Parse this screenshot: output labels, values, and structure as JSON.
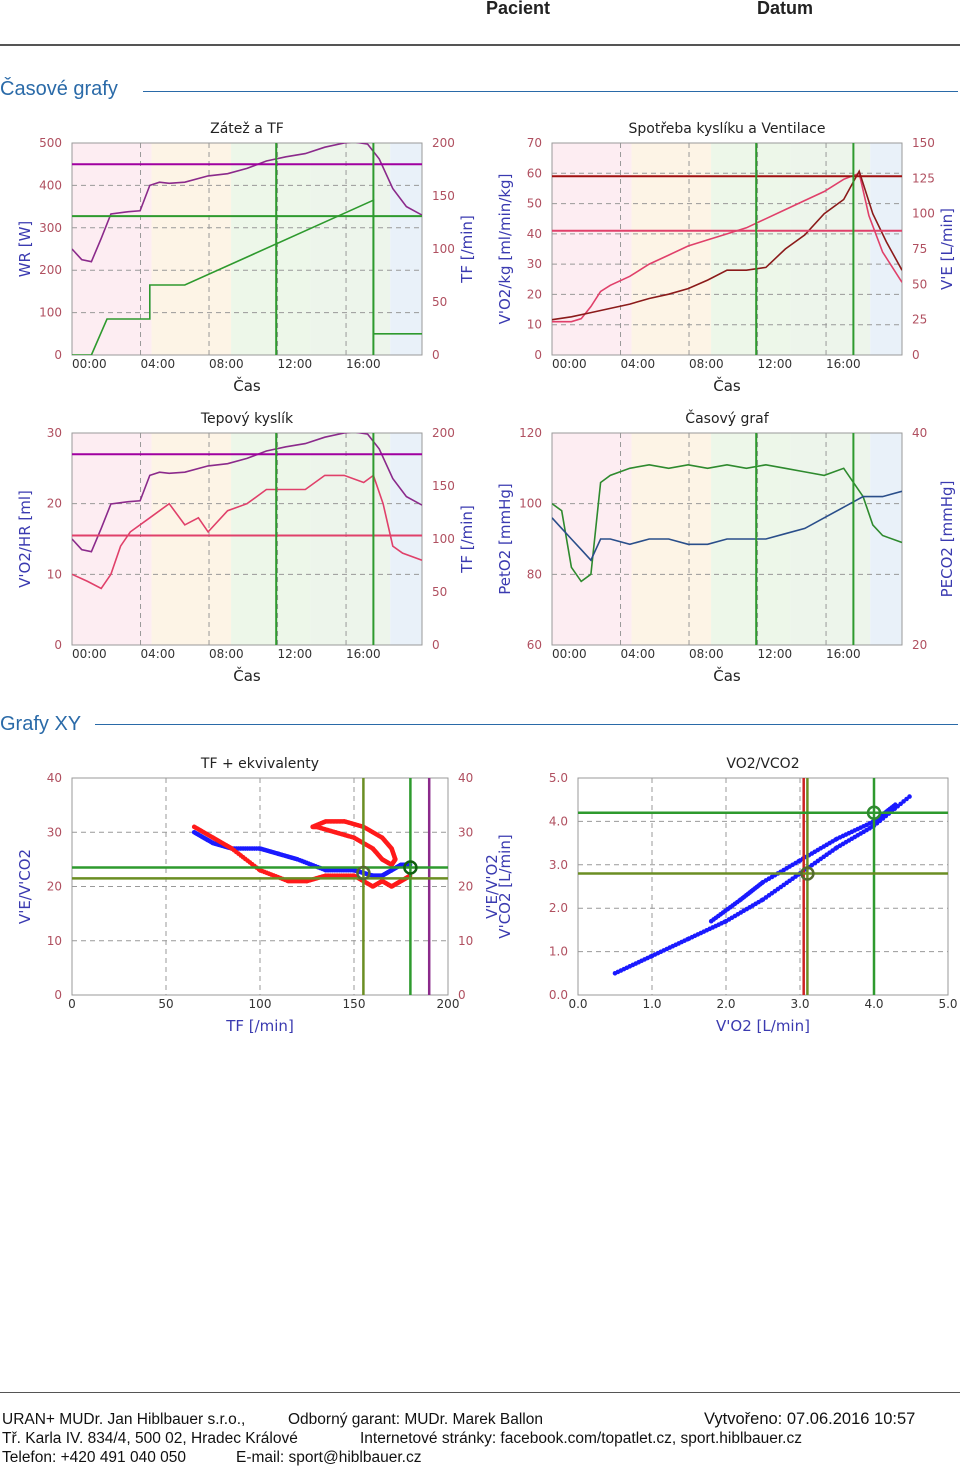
{
  "header": {
    "patient": "Pacient",
    "date": "Datum"
  },
  "sections": {
    "time_charts": "Časové grafy",
    "xy_charts": "Grafy XY"
  },
  "footer": {
    "company": "URAN+ MUDr. Jan Hiblbauer s.r.o.,",
    "guarantor": "Odborný garant: MUDr. Marek Ballon",
    "created": "Vytvořeno: 07.06.2016 10:57",
    "address": "Tř. Karla IV. 834/4, 500 02, Hradec Králové",
    "web": "Internetové stránky: facebook.com/topatlet.cz, sport.hiblbauer.cz",
    "phone": "Telefon: +420 491 040 050",
    "email": "E-mail: sport@hiblbauer.cz"
  },
  "chart_data": [
    {
      "type": "line",
      "id": "c1",
      "title": "Zátež a TF",
      "xlabel": "Čas",
      "ylabel_left": "WR [W]",
      "ylabel_right": "TF [/min]",
      "xticks": [
        "00:00",
        "04:00",
        "08:00",
        "12:00",
        "16:00"
      ],
      "xlim": [
        0,
        18
      ],
      "ylim_left": [
        0,
        500
      ],
      "ylim_right": [
        0,
        200
      ],
      "yticks_left": [
        "0",
        "100",
        "200",
        "300",
        "400",
        "500"
      ],
      "yticks_right": [
        "0",
        "50",
        "100",
        "150",
        "200"
      ],
      "series": [
        {
          "axis": "left",
          "color": "#2e9a2e",
          "x": [
            0,
            1,
            1.8,
            1.8,
            4,
            4,
            5,
            5.8,
            15.5,
            15.5,
            18
          ],
          "y": [
            0,
            0,
            85,
            85,
            85,
            165,
            165,
            165,
            365,
            50,
            50
          ]
        },
        {
          "axis": "right",
          "color": "#8b2a8b",
          "x": [
            0,
            0.5,
            1,
            1.5,
            2,
            2.8,
            3.5,
            4,
            4.5,
            5,
            5.8,
            7,
            8,
            9,
            10,
            11,
            12,
            13,
            14,
            14.5,
            15.2,
            15.8,
            16.5,
            17.2,
            18
          ],
          "y": [
            100,
            90,
            88,
            110,
            133,
            135,
            136,
            160,
            163,
            162,
            163,
            169,
            171,
            176,
            183,
            187,
            190,
            196,
            200,
            201,
            199,
            185,
            157,
            140,
            132
          ]
        },
        {
          "axis": "right",
          "color": "#a000a0",
          "x": [
            0,
            18
          ],
          "y": [
            180,
            180
          ]
        },
        {
          "axis": "right",
          "color": "#2e9a2e",
          "x": [
            0,
            18
          ],
          "y": [
            131,
            131
          ]
        },
        {
          "axis": "right",
          "color": "#2e9a2e",
          "x": [
            10.5,
            10.5
          ],
          "y": [
            0,
            200
          ]
        },
        {
          "axis": "right",
          "color": "#2e9a2e",
          "x": [
            15.5,
            15.5
          ],
          "y": [
            0,
            200
          ]
        }
      ]
    },
    {
      "type": "line",
      "id": "c2",
      "title": "Spotřeba kyslíku a Ventilace",
      "xlabel": "Čas",
      "ylabel_left": "V'O2/kg [ml/min/kg]",
      "ylabel_right": "V'E [L/min]",
      "xticks": [
        "00:00",
        "04:00",
        "08:00",
        "12:00",
        "16:00"
      ],
      "xlim": [
        0,
        18
      ],
      "ylim_left": [
        0,
        70
      ],
      "ylim_right": [
        0,
        150
      ],
      "yticks_left": [
        "0",
        "10",
        "20",
        "30",
        "40",
        "50",
        "60",
        "70"
      ],
      "yticks_right": [
        "0",
        "25",
        "50",
        "75",
        "100",
        "125",
        "150"
      ],
      "series": [
        {
          "axis": "left",
          "color": "#e0406a",
          "x": [
            0,
            1,
            1.5,
            2,
            2.5,
            3,
            4,
            5,
            6,
            7,
            8,
            9,
            10,
            11,
            12,
            13,
            14,
            15,
            15.8,
            16.3,
            17,
            18
          ],
          "y": [
            11,
            11,
            12,
            16,
            21,
            23,
            26,
            30,
            33,
            36,
            38,
            40,
            42,
            45,
            48,
            51,
            54,
            58,
            60,
            46,
            34,
            24
          ]
        },
        {
          "axis": "right",
          "color": "#8b1a1a",
          "x": [
            0,
            1,
            2,
            3,
            4,
            5,
            6,
            7,
            8,
            9,
            10,
            11,
            12,
            13,
            14,
            15,
            15.8,
            16.5,
            17.2,
            18
          ],
          "y": [
            25,
            27,
            30,
            33,
            36,
            40,
            43,
            47,
            53,
            60,
            60,
            62,
            75,
            85,
            100,
            110,
            130,
            100,
            80,
            60
          ]
        },
        {
          "axis": "left",
          "color": "#a01010",
          "x": [
            0,
            18
          ],
          "y": [
            59,
            59
          ]
        },
        {
          "axis": "left",
          "color": "#e0406a",
          "x": [
            0,
            18
          ],
          "y": [
            41,
            41
          ]
        },
        {
          "axis": "left",
          "color": "#2e9a2e",
          "x": [
            10.5,
            10.5
          ],
          "y": [
            0,
            70
          ]
        },
        {
          "axis": "left",
          "color": "#2e9a2e",
          "x": [
            15.5,
            15.5
          ],
          "y": [
            0,
            70
          ]
        }
      ]
    },
    {
      "type": "line",
      "id": "c3",
      "title": "Tepový kyslík",
      "xlabel": "Čas",
      "ylabel_left": "V'O2/HR [ml]",
      "ylabel_right": "TF [/min]",
      "xticks": [
        "00:00",
        "04:00",
        "08:00",
        "12:00",
        "16:00"
      ],
      "xlim": [
        0,
        18
      ],
      "ylim_left": [
        0,
        30
      ],
      "ylim_right": [
        0,
        200
      ],
      "yticks_left": [
        "0",
        "10",
        "20",
        "30"
      ],
      "yticks_right": [
        "0",
        "50",
        "100",
        "150",
        "200"
      ],
      "series": [
        {
          "axis": "left",
          "color": "#e0406a",
          "x": [
            0,
            0.8,
            1.5,
            2,
            2.5,
            3,
            4,
            5,
            5.8,
            6.5,
            7,
            8,
            9,
            10,
            11,
            12,
            13,
            14,
            15,
            15.5,
            16,
            16.5,
            17,
            18
          ],
          "y": [
            10,
            9,
            8,
            10,
            14,
            16,
            18,
            20,
            17,
            18,
            16,
            19,
            20,
            22,
            22,
            22,
            24,
            24,
            23,
            24,
            20,
            14,
            13,
            12
          ]
        },
        {
          "axis": "right",
          "color": "#8b2a8b",
          "x": [
            0,
            0.5,
            1,
            1.5,
            2,
            2.8,
            3.5,
            4,
            4.5,
            5,
            5.8,
            7,
            8,
            9,
            10,
            11,
            12,
            13,
            14,
            14.5,
            15.2,
            15.8,
            16.5,
            17.2,
            18
          ],
          "y": [
            100,
            90,
            88,
            110,
            133,
            135,
            136,
            160,
            163,
            162,
            163,
            169,
            171,
            176,
            183,
            187,
            190,
            196,
            200,
            201,
            199,
            185,
            157,
            140,
            132
          ]
        },
        {
          "axis": "right",
          "color": "#a000a0",
          "x": [
            0,
            18
          ],
          "y": [
            180,
            180
          ]
        },
        {
          "axis": "left",
          "color": "#e0406a",
          "x": [
            0,
            18
          ],
          "y": [
            15.5,
            15.5
          ]
        },
        {
          "axis": "left",
          "color": "#2e9a2e",
          "x": [
            10.5,
            10.5
          ],
          "y": [
            0,
            30
          ]
        },
        {
          "axis": "left",
          "color": "#2e9a2e",
          "x": [
            15.5,
            15.5
          ],
          "y": [
            0,
            30
          ]
        }
      ]
    },
    {
      "type": "line",
      "id": "c4",
      "title": "Časový graf",
      "xlabel": "Čas",
      "ylabel_left": "PetO2 [mmHg]",
      "ylabel_right": "PECO2 [mmHg]",
      "xticks": [
        "00:00",
        "04:00",
        "08:00",
        "12:00",
        "16:00"
      ],
      "xlim": [
        0,
        18
      ],
      "ylim_left": [
        60,
        120
      ],
      "ylim_right": [
        20,
        40
      ],
      "yticks_left": [
        "60",
        "80",
        "100",
        "120"
      ],
      "yticks_right": [
        "20",
        "40"
      ],
      "series": [
        {
          "axis": "left",
          "color": "#2e8a2e",
          "x": [
            0,
            0.5,
            1,
            1.5,
            2,
            2.5,
            3,
            4,
            5,
            6,
            7,
            8,
            9,
            10,
            11,
            12,
            13,
            14,
            15,
            16,
            16.5,
            17,
            18
          ],
          "y": [
            100,
            98,
            82,
            78,
            80,
            106,
            108,
            110,
            111,
            110,
            111,
            110,
            111,
            110,
            111,
            110,
            109,
            108,
            110,
            102,
            94,
            91,
            89
          ]
        },
        {
          "axis": "right",
          "color": "#2a4e8a",
          "x": [
            0,
            0.5,
            1,
            1.5,
            2,
            2.5,
            3,
            4,
            5,
            6,
            7,
            8,
            9,
            10,
            11,
            12,
            13,
            14,
            15,
            16,
            17,
            18
          ],
          "y": [
            32,
            31,
            30,
            29,
            28,
            30,
            30,
            29.5,
            30,
            30,
            29.5,
            29.5,
            30,
            30,
            30,
            30.5,
            31,
            32,
            33,
            34,
            34,
            34.5
          ]
        },
        {
          "axis": "left",
          "color": "#2e9a2e",
          "x": [
            10.5,
            10.5
          ],
          "y": [
            60,
            120
          ]
        },
        {
          "axis": "left",
          "color": "#2e9a2e",
          "x": [
            15.5,
            15.5
          ],
          "y": [
            60,
            120
          ]
        }
      ]
    },
    {
      "type": "scatter",
      "id": "c5",
      "title": "TF + ekvivalenty",
      "xlabel": "TF [/min]",
      "ylabel_left": "V'E/V'CO2",
      "ylabel_right": "V'E/V'O2",
      "xticks": [
        "0",
        "50",
        "100",
        "150",
        "200"
      ],
      "xlim": [
        0,
        200
      ],
      "ylim_left": [
        0,
        40
      ],
      "ylim_right": [
        0,
        40
      ],
      "yticks_left": [
        "0",
        "10",
        "20",
        "30",
        "40"
      ],
      "yticks_right": [
        "0",
        "10",
        "20",
        "30",
        "40"
      ],
      "series": [
        {
          "color": "#1a1aff",
          "x": [
            65,
            75,
            85,
            100,
            110,
            120,
            135,
            150,
            160,
            165,
            170,
            175,
            180
          ],
          "y": [
            30,
            28,
            27,
            27,
            26,
            25,
            23,
            23,
            22,
            22,
            23,
            24,
            24
          ]
        },
        {
          "color": "#ff1a1a",
          "x": [
            65,
            75,
            85,
            100,
            115,
            125,
            135,
            150,
            160,
            165,
            170,
            175,
            180
          ],
          "y": [
            31,
            29,
            27,
            23,
            21,
            21,
            22,
            22,
            20,
            21,
            20,
            21,
            22
          ]
        },
        {
          "color": "#ff1a1a",
          "x": [
            128,
            135,
            145,
            155,
            165,
            170,
            172,
            170,
            165,
            160,
            150,
            140,
            130,
            128
          ],
          "y": [
            31,
            32,
            32,
            31,
            29,
            27,
            25,
            24,
            25,
            27,
            29,
            30,
            31,
            31
          ]
        }
      ],
      "markers": [
        {
          "color": "#556b2f",
          "x": 155,
          "y": 22.5
        },
        {
          "color": "#0f5f0f",
          "x": 180,
          "y": 23.5
        }
      ],
      "vlines": [
        {
          "color": "#6b8e23",
          "x": 155
        },
        {
          "color": "#2e9a2e",
          "x": 180
        },
        {
          "color": "#8b2a8b",
          "x": 190
        }
      ],
      "hlines": [
        {
          "color": "#2e9a2e",
          "y": 23.5
        },
        {
          "color": "#6b8e23",
          "y": 21.5
        }
      ]
    },
    {
      "type": "scatter",
      "id": "c6",
      "title": "VO2/VCO2",
      "xlabel": "V'O2 [L/min]",
      "ylabel_left": "V'CO2 [L/min]",
      "ylabel_right": "",
      "xticks": [
        "0.0",
        "1.0",
        "2.0",
        "3.0",
        "4.0",
        "5.0"
      ],
      "xlim": [
        0,
        5
      ],
      "ylim_left": [
        0,
        5
      ],
      "yticks_left": [
        "0.0",
        "1.0",
        "2.0",
        "3.0",
        "4.0",
        "5.0"
      ],
      "series": [
        {
          "color": "#1a1aff",
          "x": [
            0.5,
            1,
            1.5,
            2,
            2.5,
            3,
            3.5,
            4,
            4.5
          ],
          "y": [
            0.5,
            0.9,
            1.3,
            1.7,
            2.2,
            2.8,
            3.4,
            3.9,
            4.6
          ]
        },
        {
          "color": "#1a1aff",
          "x": [
            1.8,
            2.2,
            2.5,
            3,
            3.5,
            4,
            4.3
          ],
          "y": [
            1.7,
            2.2,
            2.6,
            3.1,
            3.6,
            4.0,
            4.4
          ]
        }
      ],
      "markers": [
        {
          "color": "#556b2f",
          "x": 3.1,
          "y": 2.8
        },
        {
          "color": "#2e8a2e",
          "x": 4.0,
          "y": 4.2
        }
      ],
      "vlines": [
        {
          "color": "#cc2222",
          "x": 3.05
        },
        {
          "color": "#6b8e23",
          "x": 3.1
        },
        {
          "color": "#2e9a2e",
          "x": 4.0
        }
      ],
      "hlines": [
        {
          "color": "#2e9a2e",
          "y": 4.2
        },
        {
          "color": "#6b8e23",
          "y": 2.8
        }
      ]
    }
  ]
}
